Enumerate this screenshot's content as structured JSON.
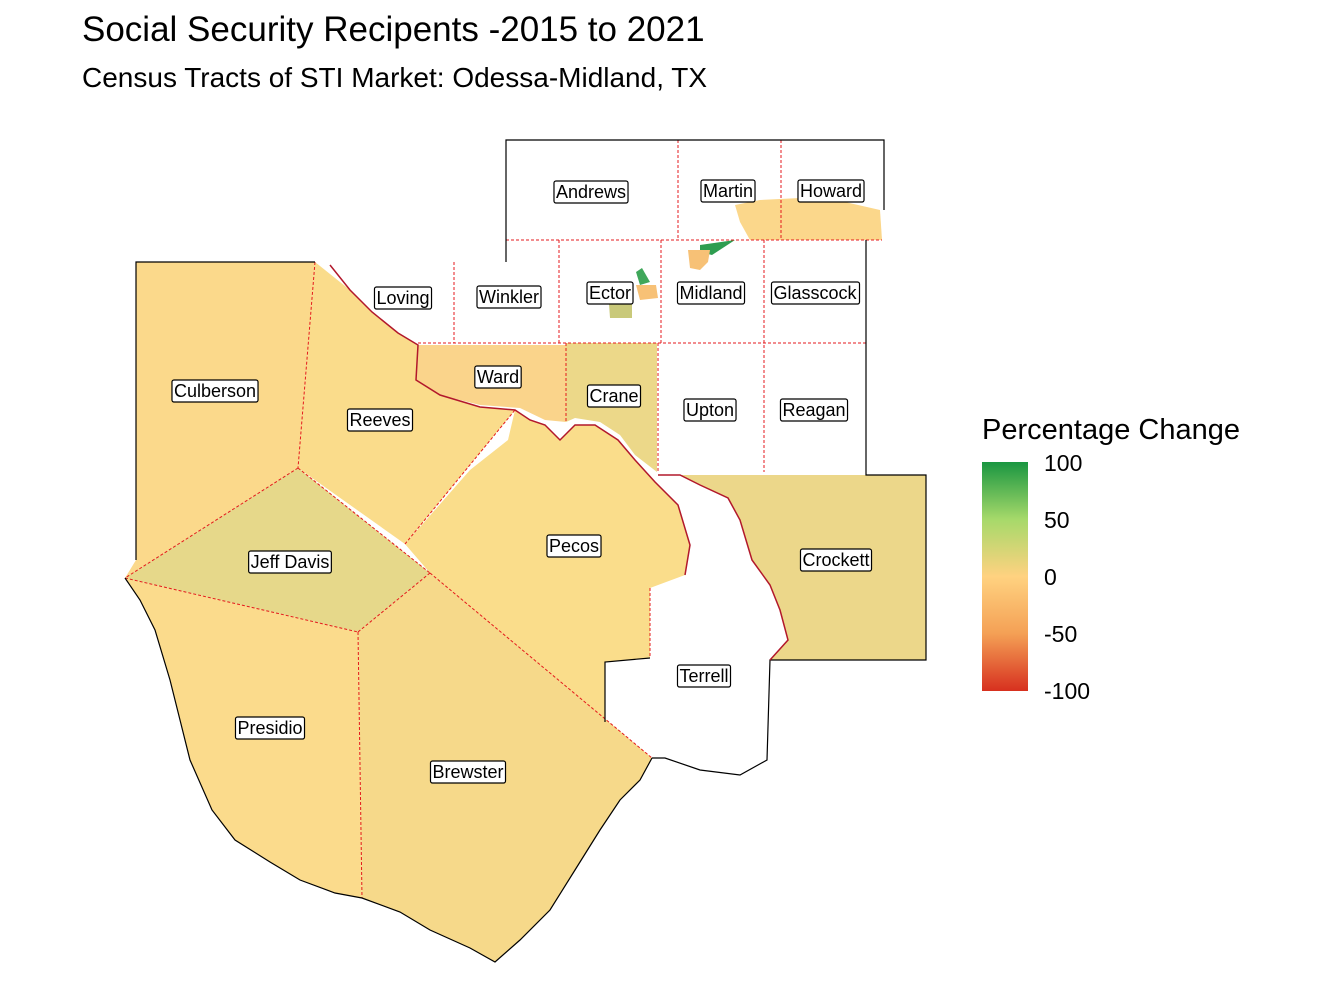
{
  "title": "Social Security Recipents -2015 to 2021",
  "subtitle": "Census Tracts of STI Market: Odessa-Midland, TX",
  "legend": {
    "title": "Percentage Change",
    "ticks": [
      "100",
      "50",
      "0",
      "-50",
      "-100"
    ],
    "colors": {
      "high": "#1a9641",
      "mid_high": "#a6d96a",
      "mid": "#ffd280",
      "mid_low": "#f4a055",
      "low": "#d7301f"
    }
  },
  "fills": {
    "culberson": "#fbd98b",
    "reeves": "#fadc8b",
    "ward": "#fad48b",
    "crane": "#ecd889",
    "jeff_davis": "#e6d88a",
    "pecos": "#fadd8b",
    "crockett": "#ecd78a",
    "presidio": "#fbdb8c",
    "brewster": "#f6d98a",
    "martin_howard": "#fbd78b",
    "midland_green": "#2e9d50",
    "ector_green": "#3fa75a",
    "ector_olive": "#c9c97a",
    "ector_orange": "#f7c176",
    "boundary": "#e41a1c"
  },
  "counties": {
    "andrews": "Andrews",
    "martin": "Martin",
    "howard": "Howard",
    "loving": "Loving",
    "winkler": "Winkler",
    "ector": "Ector",
    "midland": "Midland",
    "glasscock": "Glasscock",
    "ward": "Ward",
    "crane": "Crane",
    "upton": "Upton",
    "reagan": "Reagan",
    "culberson": "Culberson",
    "reeves": "Reeves",
    "jeff_davis": "Jeff Davis",
    "pecos": "Pecos",
    "crockett": "Crockett",
    "terrell": "Terrell",
    "presidio": "Presidio",
    "brewster": "Brewster"
  }
}
